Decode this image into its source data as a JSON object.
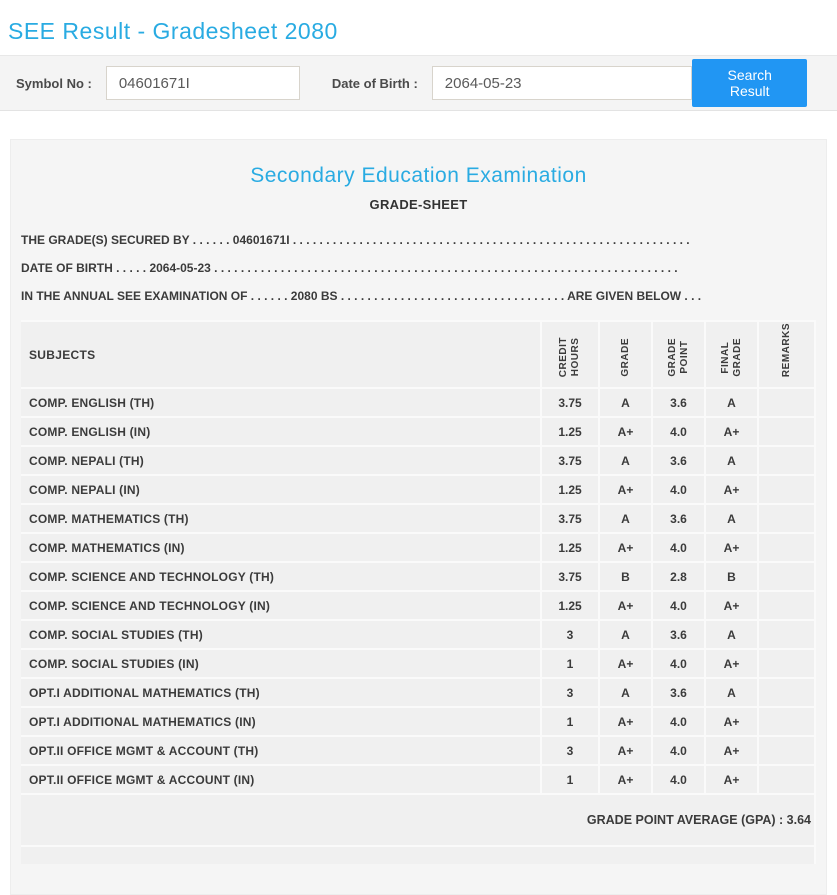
{
  "page": {
    "title": "SEE Result - Gradesheet 2080"
  },
  "colors": {
    "accent_blue": "#29abe2",
    "button_blue": "#2196f3"
  },
  "search_bar": {
    "symbol_label": "Symbol No :",
    "symbol_value": "04601671I",
    "dob_label": "Date of Birth :",
    "dob_value": "2064-05-23",
    "button_label": "Search Result"
  },
  "gradesheet": {
    "title": "Secondary Education Examination",
    "subtitle": "GRADE-SHEET",
    "statements": [
      "THE GRADE(S) SECURED BY . . . . . . 04601671I . . . . . . . . . . . . . . . . . . . . . . . . . . . . . . . . . . . . . . . . . . . . . . . . . . . . . . . . . . . .",
      "DATE OF BIRTH . . . . . 2064-05-23 . . . . . . . . . . . . . . . . . . . . . . . . . . . . . . . . . . . . . . . . . . . . . . . . . . . . . . . . . . . . . . . . . . . . . .",
      "IN THE ANNUAL SEE EXAMINATION OF . . . . . . 2080 BS . . . . . . . . . . . . . . . . . . . . . . . . . . . . . . . . . . ARE GIVEN BELOW . . ."
    ],
    "table": {
      "subjects_header": "SUBJECTS",
      "columns": [
        "CREDIT\nHOURS",
        "GRADE",
        "GRADE\nPOINT",
        "FINAL\nGRADE",
        "REMARKS"
      ],
      "rows": [
        {
          "subject": "COMP. ENGLISH (TH)",
          "credit": "3.75",
          "grade": "A",
          "point": "3.6",
          "final": "A",
          "remarks": ""
        },
        {
          "subject": "COMP. ENGLISH (IN)",
          "credit": "1.25",
          "grade": "A+",
          "point": "4.0",
          "final": "A+",
          "remarks": ""
        },
        {
          "subject": "COMP. NEPALI (TH)",
          "credit": "3.75",
          "grade": "A",
          "point": "3.6",
          "final": "A",
          "remarks": ""
        },
        {
          "subject": "COMP. NEPALI (IN)",
          "credit": "1.25",
          "grade": "A+",
          "point": "4.0",
          "final": "A+",
          "remarks": ""
        },
        {
          "subject": "COMP. MATHEMATICS (TH)",
          "credit": "3.75",
          "grade": "A",
          "point": "3.6",
          "final": "A",
          "remarks": ""
        },
        {
          "subject": "COMP. MATHEMATICS (IN)",
          "credit": "1.25",
          "grade": "A+",
          "point": "4.0",
          "final": "A+",
          "remarks": ""
        },
        {
          "subject": "COMP. SCIENCE AND TECHNOLOGY (TH)",
          "credit": "3.75",
          "grade": "B",
          "point": "2.8",
          "final": "B",
          "remarks": ""
        },
        {
          "subject": "COMP. SCIENCE AND TECHNOLOGY (IN)",
          "credit": "1.25",
          "grade": "A+",
          "point": "4.0",
          "final": "A+",
          "remarks": ""
        },
        {
          "subject": "COMP. SOCIAL STUDIES (TH)",
          "credit": "3",
          "grade": "A",
          "point": "3.6",
          "final": "A",
          "remarks": ""
        },
        {
          "subject": "COMP. SOCIAL STUDIES (IN)",
          "credit": "1",
          "grade": "A+",
          "point": "4.0",
          "final": "A+",
          "remarks": ""
        },
        {
          "subject": "OPT.I ADDITIONAL MATHEMATICS (TH)",
          "credit": "3",
          "grade": "A",
          "point": "3.6",
          "final": "A",
          "remarks": ""
        },
        {
          "subject": "OPT.I ADDITIONAL MATHEMATICS (IN)",
          "credit": "1",
          "grade": "A+",
          "point": "4.0",
          "final": "A+",
          "remarks": ""
        },
        {
          "subject": "OPT.II OFFICE MGMT & ACCOUNT (TH)",
          "credit": "3",
          "grade": "A+",
          "point": "4.0",
          "final": "A+",
          "remarks": ""
        },
        {
          "subject": "OPT.II OFFICE MGMT & ACCOUNT (IN)",
          "credit": "1",
          "grade": "A+",
          "point": "4.0",
          "final": "A+",
          "remarks": ""
        }
      ],
      "gpa_text": "GRADE POINT AVERAGE (GPA) : 3.64"
    }
  }
}
